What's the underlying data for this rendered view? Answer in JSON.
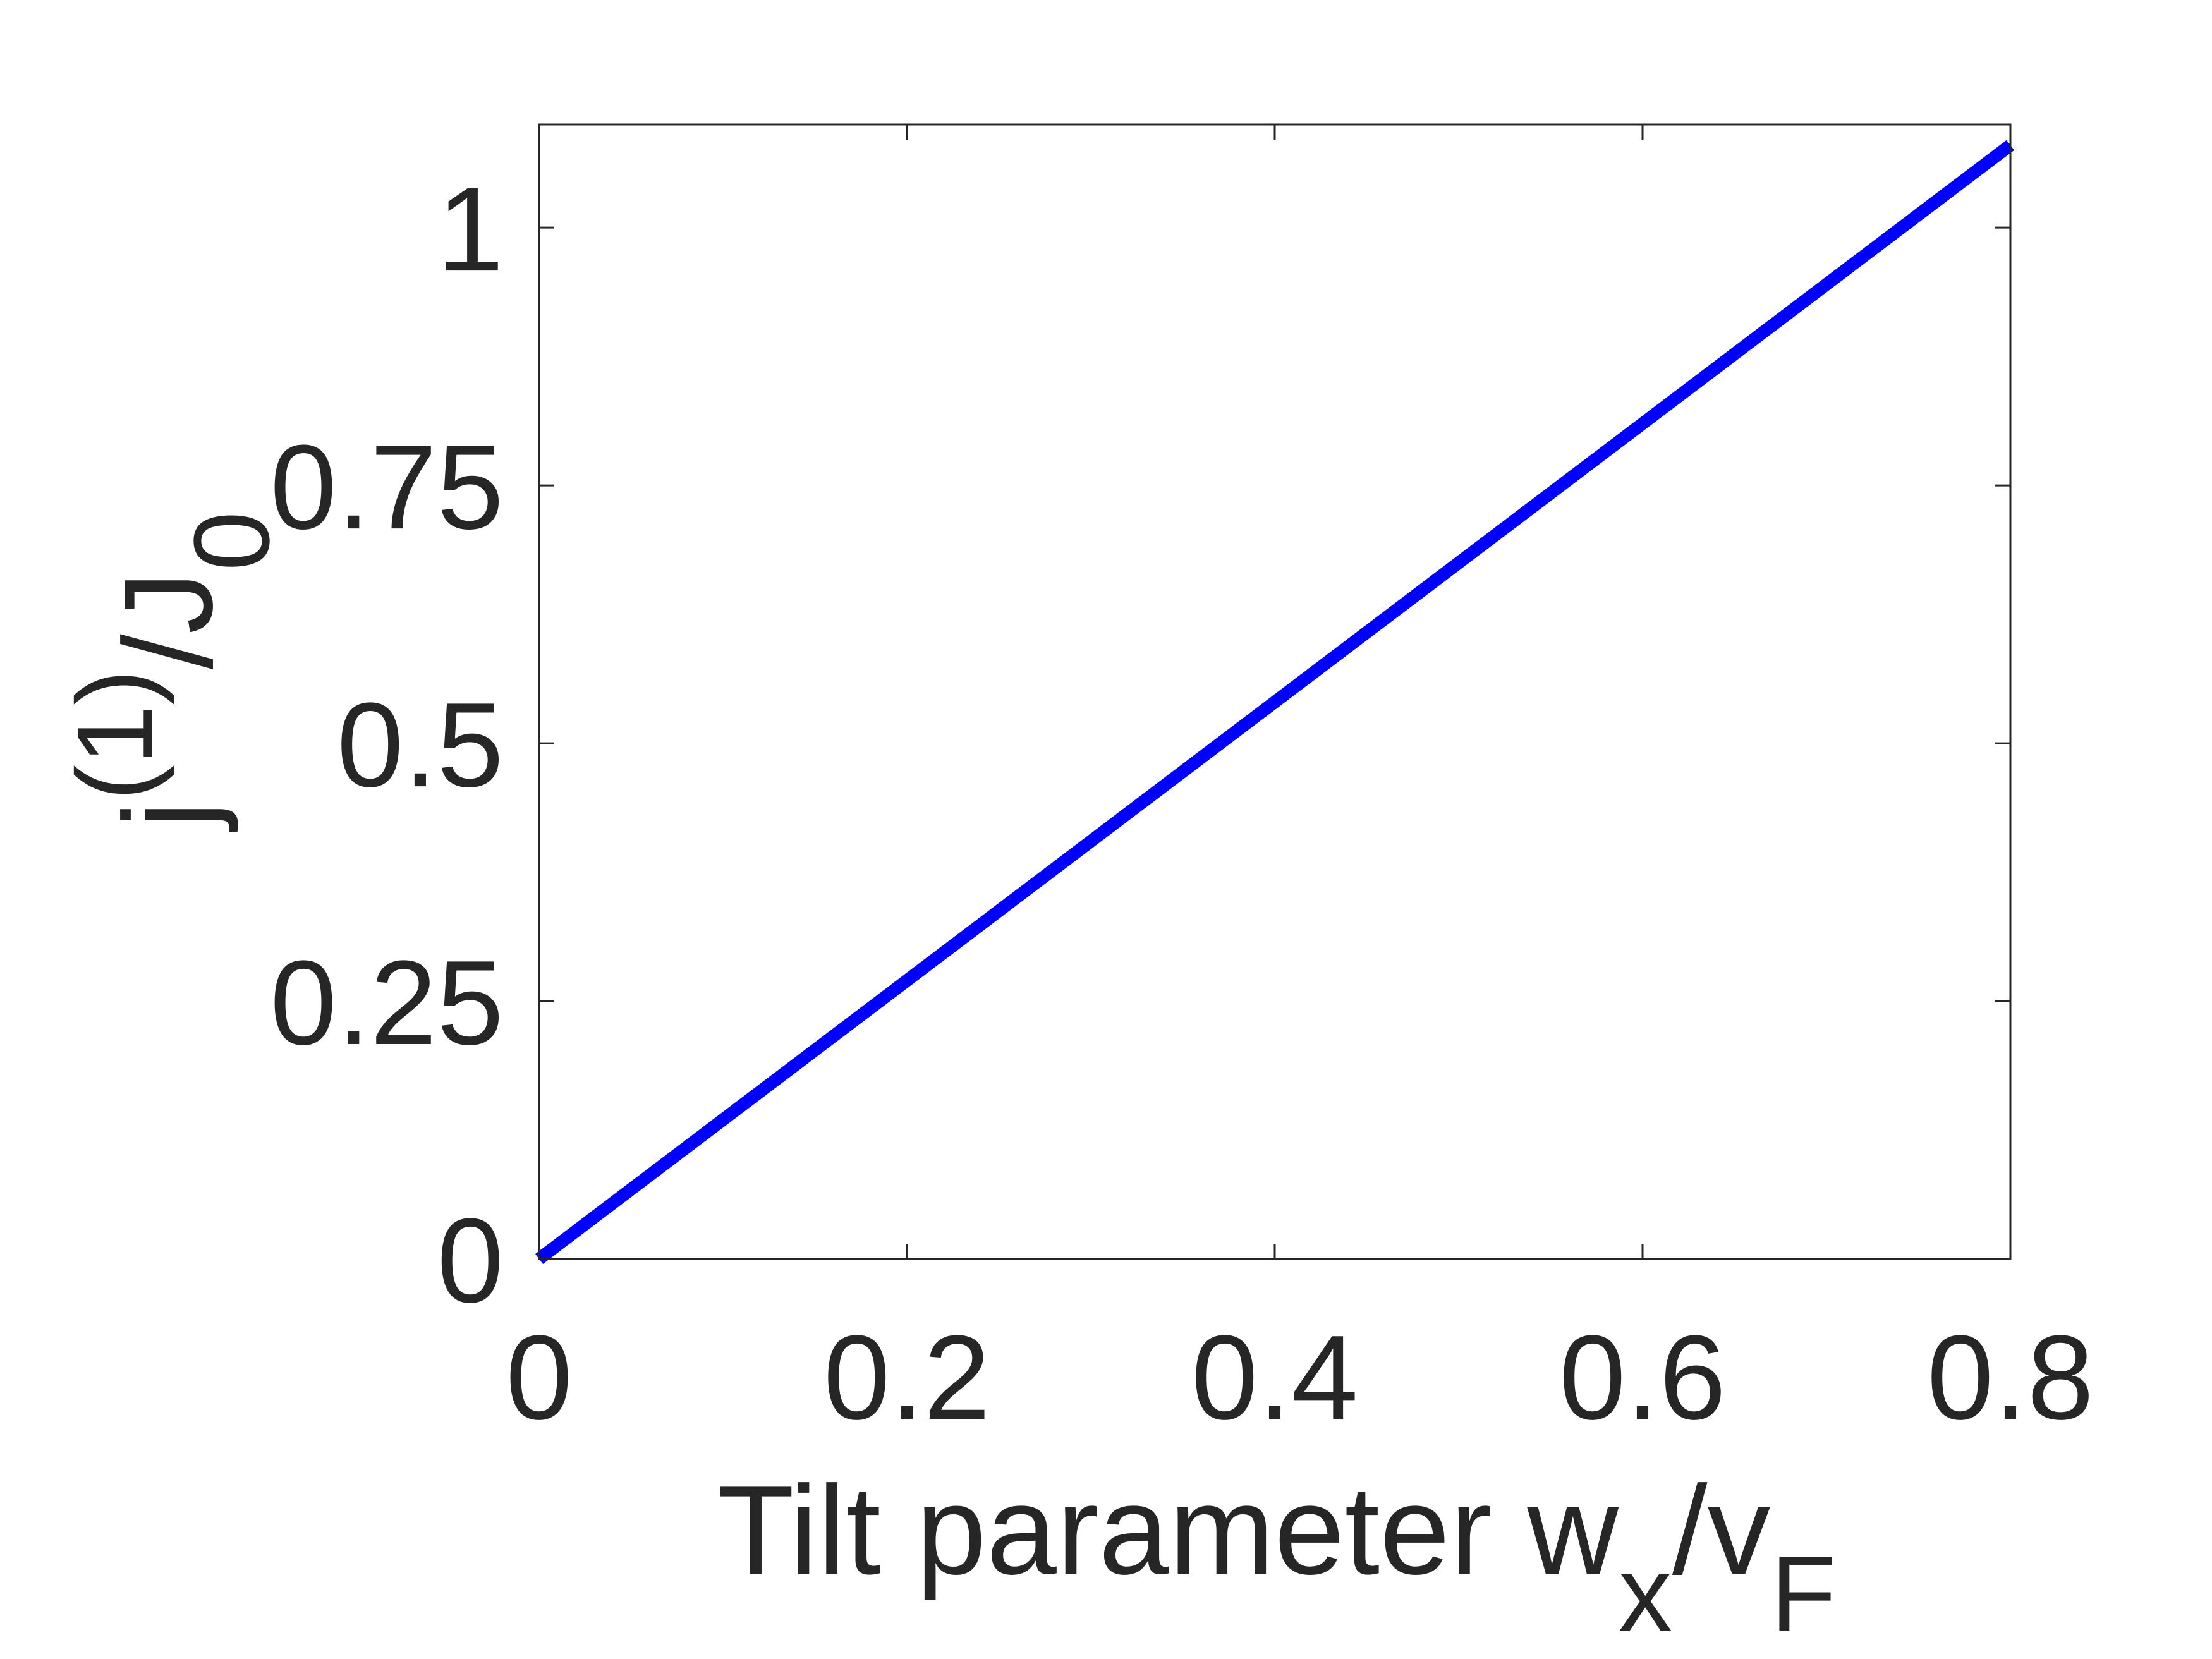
{
  "chart_data": {
    "type": "line",
    "x": [
      0,
      0.8
    ],
    "series": [
      {
        "values": [
          0,
          1.08
        ],
        "color": "#0000ff"
      }
    ],
    "xlim": [
      0,
      0.8
    ],
    "xticks": [
      0,
      0.2,
      0.4,
      0.6,
      0.8
    ],
    "ylim": [
      0,
      1.1
    ],
    "yticks": [
      0,
      0.25,
      0.5,
      0.75,
      1
    ],
    "xlabel": [
      "Tilt parameter w",
      "x",
      "/v",
      "F"
    ],
    "ylabel": [
      "j",
      "(1)",
      "/J",
      "0"
    ],
    "grid": false
  }
}
